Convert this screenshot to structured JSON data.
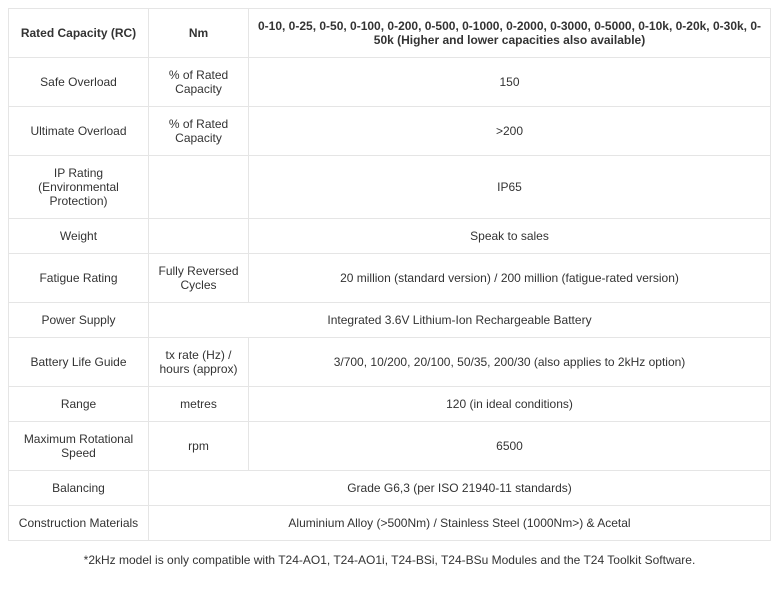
{
  "table": {
    "header": {
      "col1": "Rated Capacity (RC)",
      "col2": "Nm",
      "col3": "0-10, 0-25, 0-50, 0-100, 0-200, 0-500, 0-1000, 0-2000, 0-3000, 0-5000, 0-10k, 0-20k, 0-30k, 0-50k (Higher and lower capacities also available)"
    },
    "rows": [
      {
        "c1": "Safe Overload",
        "c2": "% of Rated Capacity",
        "c3": "150",
        "span": false
      },
      {
        "c1": "Ultimate Overload",
        "c2": "% of Rated Capacity",
        "c3": ">200",
        "span": false
      },
      {
        "c1": "IP Rating (Environmental Protection)",
        "c2": "",
        "c3": "IP65",
        "span": false
      },
      {
        "c1": "Weight",
        "c2": "",
        "c3": "Speak to sales",
        "span": false
      },
      {
        "c1": "Fatigue Rating",
        "c2": "Fully Reversed Cycles",
        "c3": "20 million (standard version) / 200 million (fatigue-rated version)",
        "span": false
      },
      {
        "c1": "Power Supply",
        "c2": "",
        "c3": "Integrated 3.6V Lithium-Ion Rechargeable Battery",
        "span": true
      },
      {
        "c1": "Battery Life Guide",
        "c2": "tx rate (Hz) / hours (approx)",
        "c3": "3/700, 10/200, 20/100, 50/35, 200/30 (also applies to 2kHz option)",
        "span": false
      },
      {
        "c1": "Range",
        "c2": "metres",
        "c3": "120 (in ideal conditions)",
        "span": false
      },
      {
        "c1": "Maximum Rotational Speed",
        "c2": "rpm",
        "c3": "6500",
        "span": false
      },
      {
        "c1": "Balancing",
        "c2": "",
        "c3": "Grade G6,3 (per ISO 21940-11 standards)",
        "span": true
      },
      {
        "c1": "Construction Materials",
        "c2": "",
        "c3": "Aluminium Alloy (>500Nm) / Stainless Steel (1000Nm>) & Acetal",
        "span": true
      }
    ],
    "footnote": "*2kHz model is only compatible with T24-AO1, T24-AO1i, T24-BSi, T24-BSu Modules and the T24 Toolkit Software."
  },
  "colors": {
    "border": "#e5e5e5",
    "text": "#333333",
    "background": "#ffffff"
  },
  "typography": {
    "font_family": "Segoe UI, Arial, sans-serif",
    "font_size_pt": 9,
    "header_weight": 700
  }
}
